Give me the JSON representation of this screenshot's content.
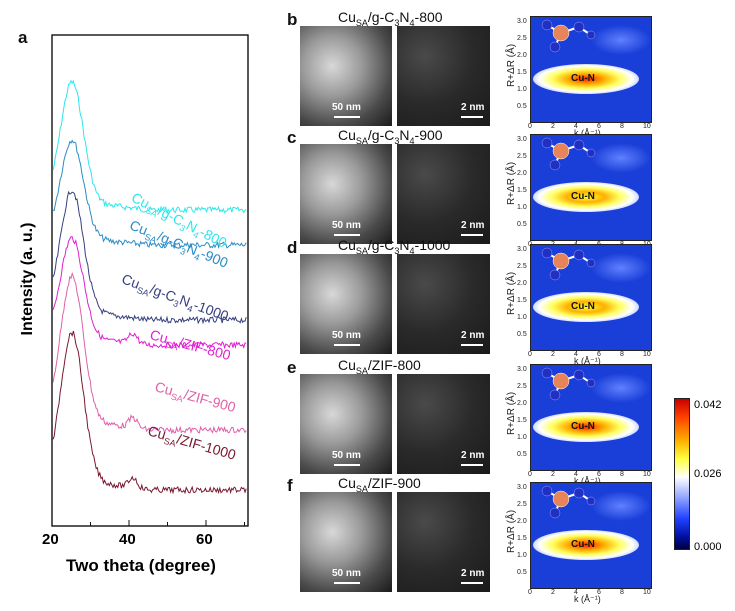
{
  "panel_a": {
    "label": "a",
    "ylabel": "Intensity (a. u.)",
    "xlabel": "Two theta (degree)",
    "xticks": [
      "20",
      "40",
      "60"
    ],
    "curves": [
      {
        "base": "Cu",
        "sub": "SA",
        "rest": "/g-C",
        "s1": "3",
        "n": "N",
        "s2": "4",
        "suffix": "-800",
        "color": "#2ee6ee"
      },
      {
        "base": "Cu",
        "sub": "SA",
        "rest": "/g-C",
        "s1": "3",
        "n": "N",
        "s2": "4",
        "suffix": "-900",
        "color": "#2b8cc7"
      },
      {
        "base": "Cu",
        "sub": "SA",
        "rest": "/g-C",
        "s1": "3",
        "n": "N",
        "s2": "4",
        "suffix": "-1000",
        "color": "#37407f"
      },
      {
        "base": "Cu",
        "sub": "SA",
        "rest": "/ZIF-800",
        "color": "#e020d0"
      },
      {
        "base": "Cu",
        "sub": "SA",
        "rest": "/ZIF-900",
        "color": "#e060a8"
      },
      {
        "base": "Cu",
        "sub": "SA",
        "rest": "/ZIF-1000",
        "color": "#7a1830"
      }
    ]
  },
  "rows": [
    {
      "label": "b",
      "base": "Cu",
      "sub": "SA",
      "rest": "/g-C",
      "s1": "3",
      "n": "N",
      "s2": "4",
      "suffix": "-800",
      "sb1": "50 nm",
      "sb2": "2 nm",
      "center": "Cu-N"
    },
    {
      "label": "c",
      "base": "Cu",
      "sub": "SA",
      "rest": "/g-C",
      "s1": "3",
      "n": "N",
      "s2": "4",
      "suffix": "-900",
      "sb1": "50 nm",
      "sb2": "2 nm",
      "center": "Cu-N"
    },
    {
      "label": "d",
      "base": "Cu",
      "sub": "SA",
      "rest": "/g-C",
      "s1": "3",
      "n": "N",
      "s2": "4",
      "suffix": "-1000",
      "sb1": "50 nm",
      "sb2": "2 nm",
      "center": "Cu-N"
    },
    {
      "label": "e",
      "base": "Cu",
      "sub": "SA",
      "rest": "/ZIF-800",
      "sb1": "50 nm",
      "sb2": "2 nm",
      "center": "Cu-N"
    },
    {
      "label": "f",
      "base": "Cu",
      "sub": "SA",
      "rest": "/ZIF-900",
      "sb1": "50 nm",
      "sb2": "2 nm",
      "center": "Cu-N"
    }
  ],
  "wt": {
    "ylabel": "R+ΔR (Å)",
    "xlabel": "k (Å⁻¹)",
    "yticks": [
      "3.0",
      "2.5",
      "2.0",
      "1.5",
      "1.0",
      "0.5"
    ],
    "xticks": [
      "0",
      "2",
      "4",
      "6",
      "8",
      "10"
    ]
  },
  "colorbar": {
    "max": "0.042",
    "mid": "0.026",
    "min": "0.000"
  }
}
